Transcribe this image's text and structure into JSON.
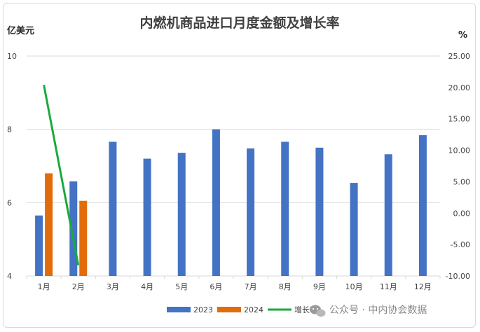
{
  "chart_data": {
    "type": "bar+line",
    "title": "内燃机商品进口月度金额及增长率",
    "left_unit": "亿美元",
    "right_unit": "%",
    "categories": [
      "1月",
      "2月",
      "3月",
      "4月",
      "5月",
      "6月",
      "7月",
      "8月",
      "9月",
      "10月",
      "11月",
      "12月"
    ],
    "left_axis": {
      "min": 4,
      "max": 10,
      "ticks": [
        "4",
        "6",
        "8",
        "10"
      ]
    },
    "right_axis": {
      "min": -10,
      "max": 25,
      "ticks": [
        "-10.00",
        "-5.00",
        "0.00",
        "5.00",
        "10.00",
        "15.00",
        "20.00",
        "25.00"
      ]
    },
    "series": [
      {
        "name": "2023",
        "type": "bar",
        "axis": "left",
        "color": "#4472c4",
        "values": [
          5.65,
          6.58,
          7.66,
          7.2,
          7.36,
          8.0,
          7.48,
          7.66,
          7.5,
          6.54,
          7.32,
          7.84
        ]
      },
      {
        "name": "2024",
        "type": "bar",
        "axis": "left",
        "color": "#e36c0a",
        "values": [
          6.8,
          6.05,
          null,
          null,
          null,
          null,
          null,
          null,
          null,
          null,
          null,
          null
        ]
      },
      {
        "name": "增长率",
        "type": "line",
        "axis": "right",
        "color": "#1aaa3c",
        "values": [
          20.4,
          -8.3,
          null,
          null,
          null,
          null,
          null,
          null,
          null,
          null,
          null,
          null
        ]
      }
    ],
    "grid": true,
    "legend": "bottom"
  },
  "watermark": {
    "text": "公众号 · 中内协会数据",
    "icon": "wechat-icon"
  }
}
